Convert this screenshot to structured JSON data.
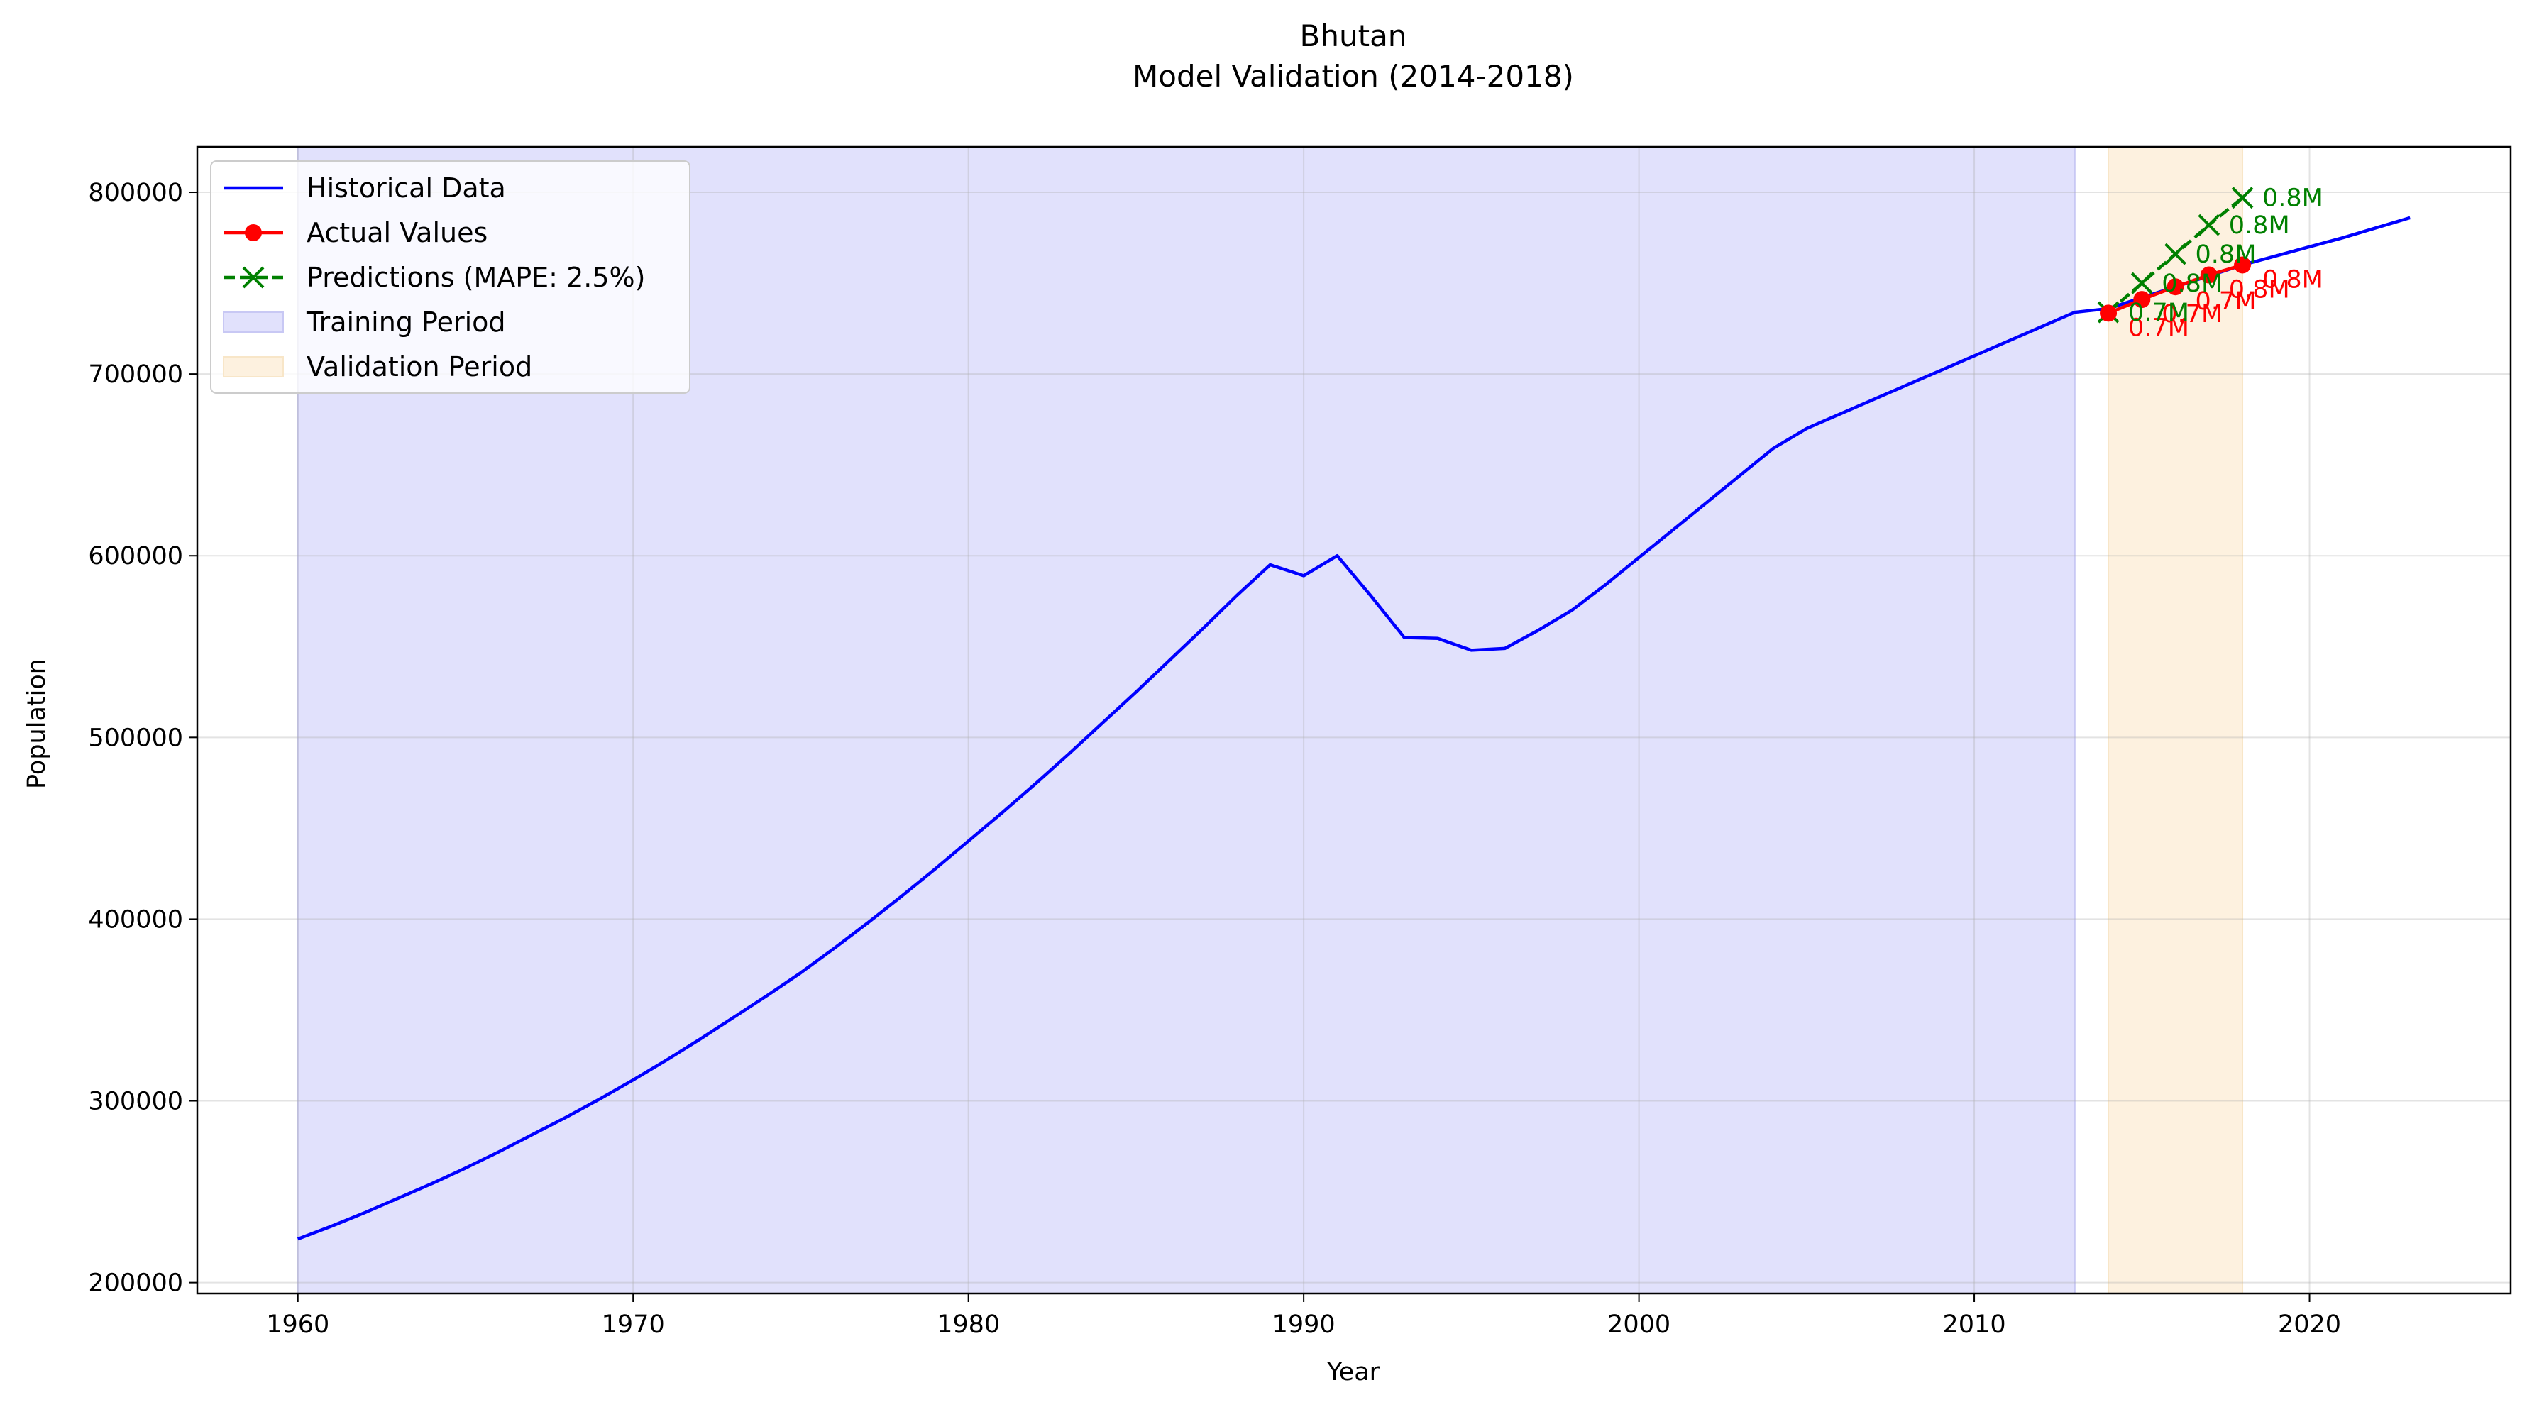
{
  "chart_data": {
    "type": "line",
    "title": "Bhutan",
    "subtitle": "Model Validation (2014-2018)",
    "xlabel": "Year",
    "ylabel": "Population",
    "xlim": [
      1957,
      2026
    ],
    "ylim": [
      194000,
      825000
    ],
    "xticks": [
      1960,
      1970,
      1980,
      1990,
      2000,
      2010,
      2020
    ],
    "yticks": [
      200000,
      300000,
      400000,
      500000,
      600000,
      700000,
      800000
    ],
    "grid": true,
    "legend_position": "top-left",
    "training_period": [
      1960,
      2013
    ],
    "validation_period": [
      2014,
      2018
    ],
    "colors": {
      "historical": "#0000ff",
      "actual": "#ff0000",
      "prediction": "#008000",
      "training_fill": "#e1e1fc",
      "validation_fill": "#fdf1df"
    },
    "series": [
      {
        "name": "Historical Data",
        "x": [
          1960,
          1961,
          1962,
          1963,
          1964,
          1965,
          1966,
          1967,
          1968,
          1969,
          1970,
          1971,
          1972,
          1973,
          1974,
          1975,
          1976,
          1977,
          1978,
          1979,
          1980,
          1981,
          1982,
          1983,
          1984,
          1985,
          1986,
          1987,
          1988,
          1989,
          1990,
          1991,
          1992,
          1993,
          1994,
          1995,
          1996,
          1997,
          1998,
          1999,
          2000,
          2001,
          2002,
          2003,
          2004,
          2005,
          2006,
          2007,
          2008,
          2009,
          2010,
          2011,
          2012,
          2013,
          2014,
          2015,
          2016,
          2017,
          2018,
          2019,
          2020,
          2021,
          2022,
          2023
        ],
        "values": [
          224000,
          231000,
          238500,
          246500,
          254500,
          263000,
          272000,
          281500,
          291000,
          301000,
          311500,
          322500,
          334000,
          346000,
          358000,
          370500,
          384000,
          398000,
          412500,
          427500,
          443000,
          458500,
          474500,
          491000,
          508000,
          525000,
          542500,
          560000,
          578000,
          595000,
          589000,
          600000,
          578000,
          555000,
          554500,
          548000,
          549000,
          559000,
          570000,
          584000,
          599000,
          614000,
          629000,
          644000,
          659000,
          670000,
          678000,
          686000,
          694000,
          702000,
          710000,
          718000,
          726000,
          734000,
          736000,
          742000,
          748000,
          754000,
          760000,
          765000,
          770000,
          775000,
          780500,
          786000
        ]
      },
      {
        "name": "Actual Values",
        "x": [
          2014,
          2015,
          2016,
          2017,
          2018
        ],
        "values": [
          733500,
          741000,
          748000,
          754500,
          760000
        ]
      },
      {
        "name": "Predictions (MAPE: 2.5%)",
        "x": [
          2014,
          2015,
          2016,
          2017,
          2018
        ],
        "values": [
          734000,
          750000,
          766000,
          782000,
          797000
        ]
      }
    ],
    "legend": [
      {
        "label": "Historical Data",
        "kind": "line"
      },
      {
        "label": "Actual Values",
        "kind": "line-dot"
      },
      {
        "label": "Predictions (MAPE: 2.5%)",
        "kind": "dash-x"
      },
      {
        "label": "Training Period",
        "kind": "patch-training"
      },
      {
        "label": "Validation Period",
        "kind": "patch-validation"
      }
    ],
    "annotations": {
      "actual": [
        "0.7M",
        "0.7M",
        "0.7M",
        "0.8M",
        "0.8M"
      ],
      "prediction": [
        "0.7M",
        "0.8M",
        "0.8M",
        "0.8M",
        "0.8M"
      ]
    }
  }
}
